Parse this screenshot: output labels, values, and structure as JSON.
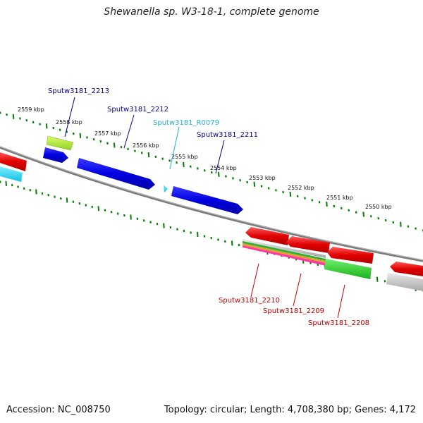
{
  "header": {
    "title": "Shewanella sp. W3-18-1, complete genome"
  },
  "footer": {
    "accession": "Accession: NC_008750",
    "summary": "Topology: circular; Length: 4,708,380 bp; Genes: 4,172"
  },
  "ticks": [
    "2559 kbp",
    "2558 kbp",
    "2557 kbp",
    "2556 kbp",
    "2555 kbp",
    "2554 kbp",
    "2553 kbp",
    "2552 kbp",
    "2551 kbp",
    "2550 kbp"
  ],
  "gene_labels": {
    "g2213": "Sputw3181_2213",
    "g2212": "Sputw3181_2212",
    "r0079": "Sputw3181_R0079",
    "g2211": "Sputw3181_2211",
    "g2210": "Sputw3181_2210",
    "g2209": "Sputw3181_2209",
    "g2208": "Sputw3181_2208"
  },
  "colors": {
    "forward_gene": "#0000e0",
    "reverse_gene": "#e00000",
    "rna": "#20c8e0",
    "tick": "#008000",
    "backbone": "#808080",
    "label_forward": "#00008b",
    "label_rna": "#20b0d0",
    "label_reverse": "#c00000"
  }
}
